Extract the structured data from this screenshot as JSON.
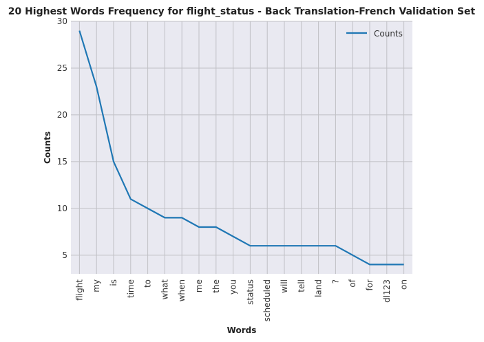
{
  "chart_data": {
    "type": "line",
    "title": "20 Highest Words Frequency for flight_status - Back Translation-French Validation Set",
    "xlabel": "Words",
    "ylabel": "Counts",
    "categories": [
      "flight",
      "my",
      "is",
      "time",
      "to",
      "what",
      "when",
      "me",
      "the",
      "you",
      "status",
      "scheduled",
      "will",
      "tell",
      "land",
      "?",
      "of",
      "for",
      "dl123",
      "on"
    ],
    "series": [
      {
        "name": "Counts",
        "values": [
          29,
          23,
          15,
          11,
          10,
          9,
          9,
          8,
          8,
          7,
          6,
          6,
          6,
          6,
          6,
          6,
          5,
          4,
          4,
          4
        ]
      }
    ],
    "ylim": [
      3,
      30
    ],
    "yticks": [
      5,
      10,
      15,
      20,
      25,
      30
    ],
    "grid": true,
    "legend_position": "top-right",
    "colors": {
      "line": "#1f77b4",
      "plot_background": "#e9e9f1",
      "grid": "#c0c0c5"
    }
  }
}
